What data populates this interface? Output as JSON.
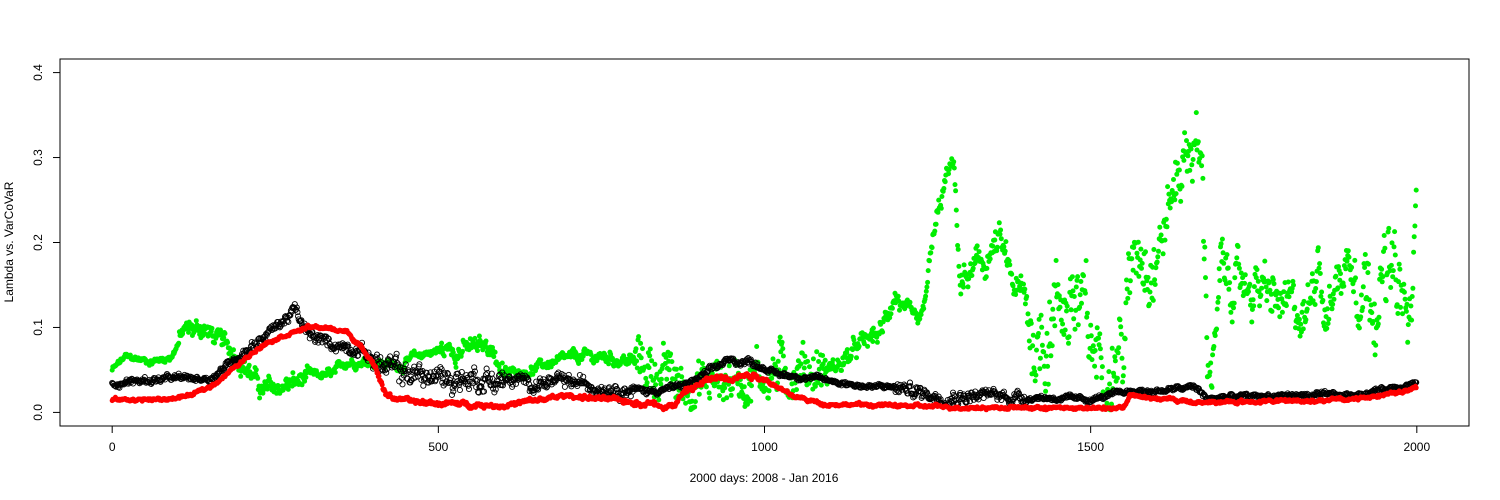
{
  "chart_data": {
    "type": "scatter",
    "title": "",
    "xlabel": "2000 days: 2008 - Jan 2016",
    "ylabel": "Lambda vs. VarCoVaR",
    "xlim": [
      -80,
      2080
    ],
    "ylim": [
      -0.016,
      0.416
    ],
    "xticks": [
      0,
      500,
      1000,
      1500,
      2000
    ],
    "yticks": [
      0.0,
      0.1,
      0.2,
      0.3,
      0.4
    ],
    "xtick_labels": [
      "0",
      "500",
      "1000",
      "1500",
      "2000"
    ],
    "ytick_labels": [
      "0.0",
      "0.1",
      "0.2",
      "0.3",
      "0.4"
    ],
    "grid": false,
    "legend": "none",
    "n_points": 2000,
    "series": [
      {
        "color": "#00ee00",
        "marker": "filled-circle",
        "trend_x": [
          0,
          20,
          60,
          90,
          110,
          140,
          170,
          190,
          210,
          230,
          260,
          300,
          340,
          360,
          400,
          440,
          480,
          520,
          560,
          580,
          600,
          640,
          680,
          720,
          760,
          800,
          850,
          870,
          900,
          940,
          1000,
          1060,
          1100,
          1120,
          1150,
          1180,
          1200,
          1220,
          1240,
          1260,
          1280,
          1290,
          1300,
          1330,
          1360,
          1380,
          1400,
          1420,
          1440,
          1460,
          1480,
          1500,
          1520,
          1550,
          1570,
          1600,
          1620,
          1640,
          1660,
          1670,
          1680,
          1690,
          1700,
          1720,
          1750,
          1800,
          1830,
          1850,
          1860,
          1880,
          1900,
          1930,
          1960,
          1980,
          1990,
          2000
        ],
        "trend_y": [
          0.05,
          0.065,
          0.06,
          0.065,
          0.095,
          0.1,
          0.08,
          0.07,
          0.05,
          0.025,
          0.03,
          0.04,
          0.045,
          0.06,
          0.06,
          0.055,
          0.07,
          0.075,
          0.075,
          0.08,
          0.045,
          0.05,
          0.06,
          0.065,
          0.065,
          0.06,
          0.045,
          0.03,
          0.03,
          0.04,
          0.045,
          0.055,
          0.05,
          0.06,
          0.08,
          0.095,
          0.14,
          0.11,
          0.1,
          0.21,
          0.28,
          0.29,
          0.15,
          0.17,
          0.2,
          0.15,
          0.13,
          0.08,
          0.12,
          0.135,
          0.13,
          0.07,
          0.075,
          0.08,
          0.21,
          0.19,
          0.24,
          0.3,
          0.32,
          0.29,
          0.06,
          0.07,
          0.16,
          0.15,
          0.15,
          0.12,
          0.11,
          0.2,
          0.11,
          0.16,
          0.185,
          0.15,
          0.16,
          0.12,
          0.09,
          0.24
        ],
        "noise": [
          0.004,
          0.012,
          0.012,
          0.006,
          0.006,
          0.012,
          0.006,
          0.008,
          0.03,
          0.03,
          0.03,
          0.012,
          0.012,
          0.02,
          0.06,
          0.05,
          0.04,
          0.03,
          0.03,
          0.05
        ]
      },
      {
        "color": "#000000",
        "marker": "open-circle",
        "trend_x": [
          0,
          100,
          150,
          200,
          250,
          280,
          300,
          340,
          380,
          420,
          500,
          560,
          640,
          700,
          760,
          820,
          870,
          900,
          940,
          980,
          1020,
          1080,
          1160,
          1200,
          1260,
          1350,
          1500,
          1560,
          1600,
          1660,
          1680,
          1700,
          1800,
          1900,
          2000
        ],
        "trend_y": [
          0.035,
          0.04,
          0.04,
          0.07,
          0.1,
          0.12,
          0.09,
          0.08,
          0.075,
          0.05,
          0.04,
          0.04,
          0.035,
          0.035,
          0.03,
          0.025,
          0.03,
          0.04,
          0.06,
          0.06,
          0.045,
          0.04,
          0.03,
          0.03,
          0.02,
          0.02,
          0.015,
          0.025,
          0.025,
          0.03,
          0.015,
          0.018,
          0.02,
          0.02,
          0.035
        ],
        "noise": [
          0.004,
          0.007,
          0.015,
          0.008,
          0.004,
          0.003,
          0.008,
          0.003,
          0.003,
          0.003
        ]
      },
      {
        "color": "#ff0000",
        "marker": "filled-circle",
        "trend_x": [
          0,
          80,
          120,
          150,
          200,
          230,
          260,
          300,
          320,
          360,
          400,
          420,
          460,
          600,
          700,
          760,
          860,
          880,
          920,
          980,
          1000,
          1040,
          1090,
          1200,
          1300,
          1500,
          1550,
          1560,
          1620,
          1660,
          1700,
          1900,
          2000
        ],
        "trend_y": [
          0.015,
          0.015,
          0.02,
          0.03,
          0.06,
          0.08,
          0.09,
          0.1,
          0.1,
          0.095,
          0.06,
          0.02,
          0.012,
          0.008,
          0.02,
          0.015,
          0.008,
          0.025,
          0.04,
          0.045,
          0.04,
          0.02,
          0.01,
          0.008,
          0.006,
          0.005,
          0.006,
          0.02,
          0.015,
          0.012,
          0.012,
          0.015,
          0.028
        ],
        "noise": [
          0.002,
          0.002,
          0.003,
          0.003,
          0.004,
          0.002,
          0.002,
          0.002,
          0.002,
          0.002
        ]
      }
    ]
  }
}
